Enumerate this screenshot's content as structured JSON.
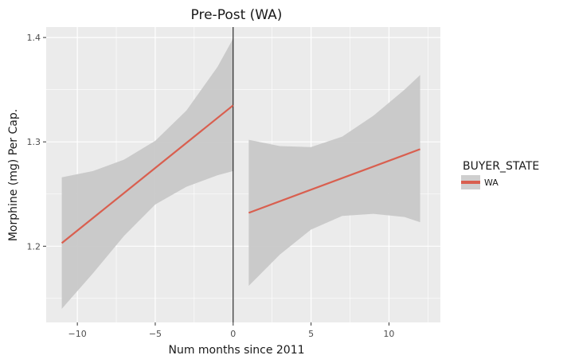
{
  "chart_data": {
    "type": "line",
    "title": "Pre-Post (WA)",
    "xlabel": "Num months since 2011",
    "ylabel": "Morphine (mg) Per Cap.",
    "xlim": [
      -12.0,
      13.3
    ],
    "ylim": [
      1.127,
      1.41
    ],
    "xticks": [
      -10,
      -5,
      0,
      5,
      10
    ],
    "xtick_labels": [
      "−10",
      "−5",
      "0",
      "5",
      "10"
    ],
    "yticks": [
      1.2,
      1.3,
      1.4
    ],
    "ytick_labels": [
      "1.2",
      "1.3",
      "1.4"
    ],
    "grid": true,
    "vline_x": 0,
    "legend": {
      "title": "BUYER_STATE",
      "position": "right",
      "entries": [
        "WA"
      ]
    },
    "colors": {
      "line": "#d95f4f",
      "band": "#c8c8c8",
      "panel": "#ebebeb",
      "grid": "#ffffff",
      "vline": "#000000"
    },
    "series": [
      {
        "name": "WA",
        "segment": "pre",
        "x": [
          -11,
          0
        ],
        "y": [
          1.203,
          1.335
        ],
        "band": {
          "x": [
            -11,
            -9,
            -7,
            -5,
            -3,
            -1,
            0
          ],
          "upper": [
            1.266,
            1.272,
            1.283,
            1.301,
            1.33,
            1.372,
            1.399
          ],
          "lower": [
            1.14,
            1.174,
            1.21,
            1.24,
            1.257,
            1.268,
            1.272
          ]
        }
      },
      {
        "name": "WA",
        "segment": "post",
        "x": [
          1,
          12
        ],
        "y": [
          1.232,
          1.293
        ],
        "band": {
          "x": [
            1,
            3,
            5,
            7,
            9,
            11,
            12
          ],
          "upper": [
            1.302,
            1.296,
            1.295,
            1.305,
            1.325,
            1.35,
            1.364
          ],
          "lower": [
            1.162,
            1.192,
            1.216,
            1.229,
            1.231,
            1.228,
            1.223
          ]
        }
      }
    ]
  }
}
